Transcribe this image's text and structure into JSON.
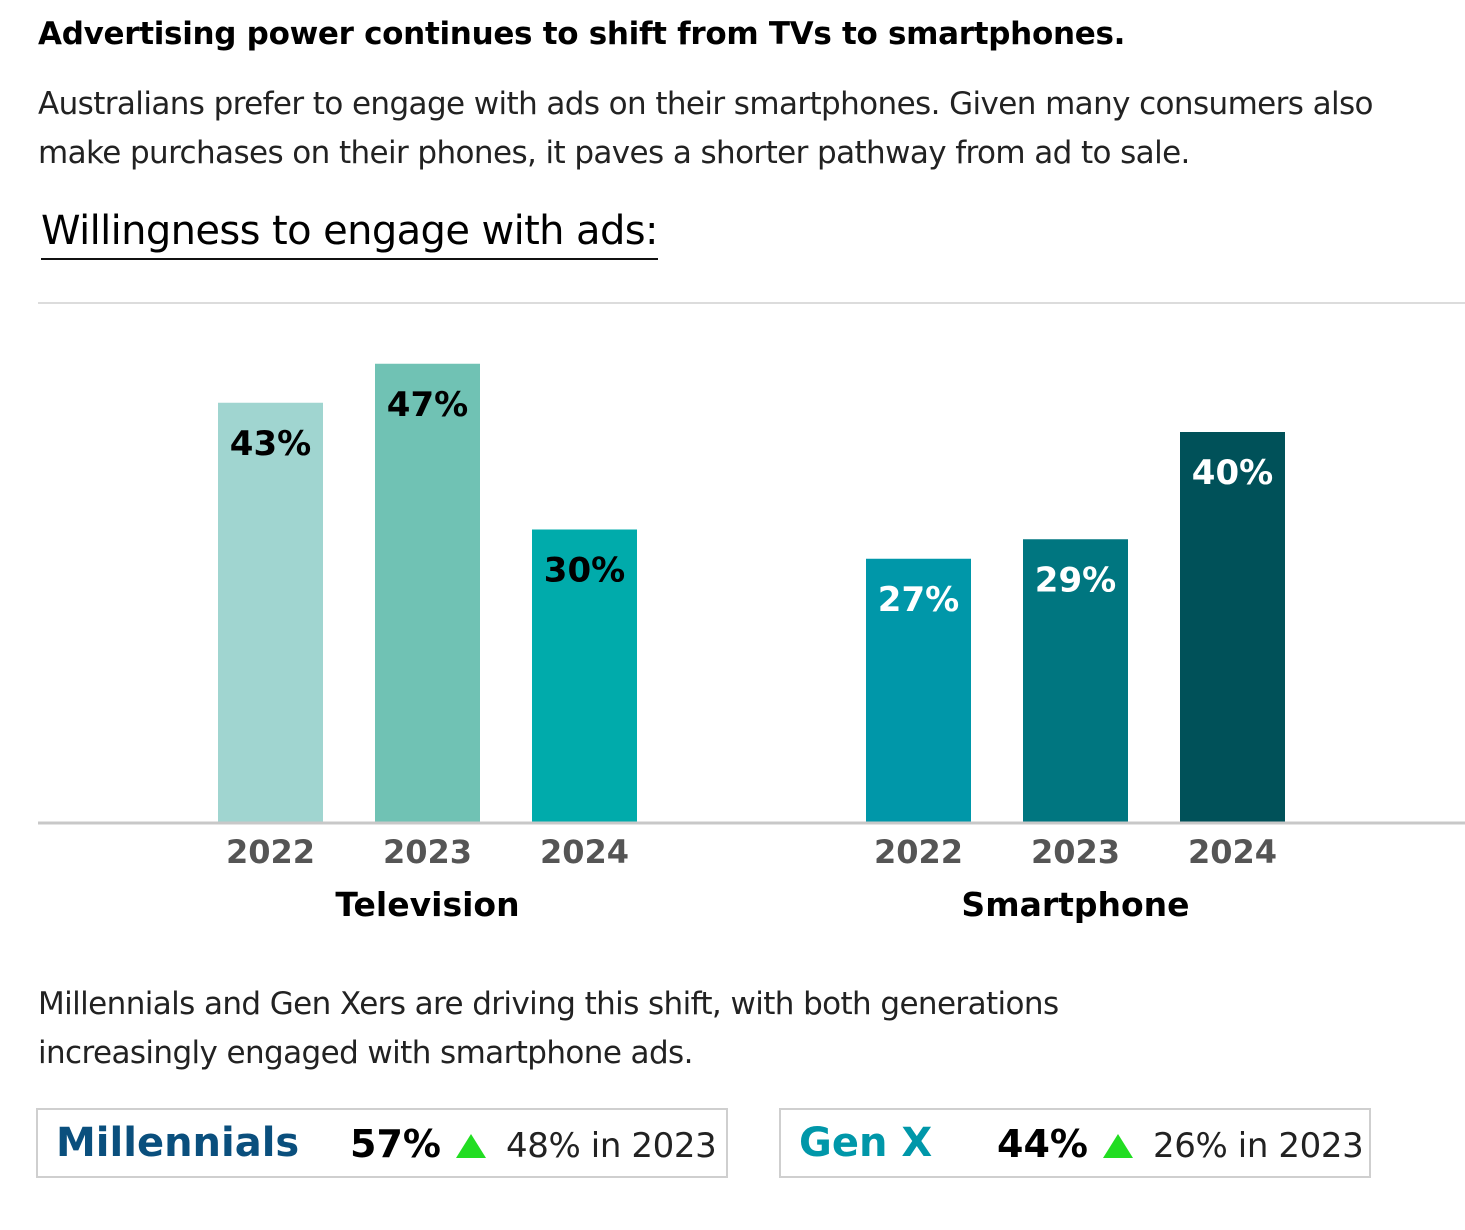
{
  "header": {
    "headline": "Advertising power continues to shift from TVs to smartphones.",
    "intro": "Australians prefer to engage with ads on their smartphones. Given many consumers also make purchases on their phones, it paves a shorter pathway from ad to sale."
  },
  "chart_data": {
    "type": "bar",
    "title": "Willingness to engage with ads:",
    "groups": [
      {
        "name": "Television",
        "bars": [
          {
            "year": "2022",
            "value": 43,
            "label": "43%",
            "color": "#a0d5d0",
            "label_color": "#000000"
          },
          {
            "year": "2023",
            "value": 47,
            "label": "47%",
            "color": "#70c2b4",
            "label_color": "#000000"
          },
          {
            "year": "2024",
            "value": 30,
            "label": "30%",
            "color": "#00abab",
            "label_color": "#000000"
          }
        ]
      },
      {
        "name": "Smartphone",
        "bars": [
          {
            "year": "2022",
            "value": 27,
            "label": "27%",
            "color": "#0097a9",
            "label_color": "#ffffff"
          },
          {
            "year": "2023",
            "value": 29,
            "label": "29%",
            "color": "#007680",
            "label_color": "#ffffff"
          },
          {
            "year": "2024",
            "value": 40,
            "label": "40%",
            "color": "#005159",
            "label_color": "#ffffff"
          }
        ]
      }
    ],
    "ylim": [
      0,
      50
    ]
  },
  "footnote": "Millennials and Gen Xers are driving this shift, with both generations increasingly engaged with smartphone ads.",
  "stats": [
    {
      "name": "Millennials",
      "value": "57%",
      "previous": "48% in 2023",
      "name_color": "#0a4f7d",
      "arrow_color": "#22dd22"
    },
    {
      "name": "Gen X",
      "value": "44%",
      "previous": "26% in 2023",
      "name_color": "#0097a9",
      "arrow_color": "#22dd22"
    }
  ]
}
